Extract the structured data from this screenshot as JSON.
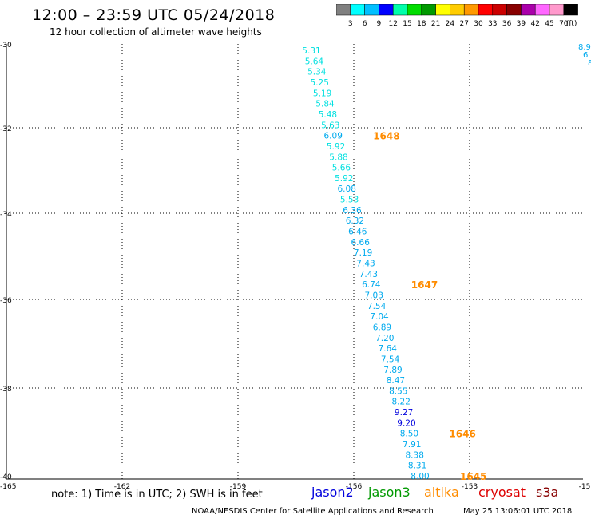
{
  "header": {
    "title": "12:00 – 23:59 UTC 05/24/2018",
    "subtitle": "12 hour collection of altimeter wave heights"
  },
  "color_scale": {
    "colors": [
      "#808080",
      "#00ffff",
      "#00bfff",
      "#0000ff",
      "#00ffaa",
      "#00dd00",
      "#009900",
      "#ffff00",
      "#ffcc00",
      "#ff9900",
      "#ff0000",
      "#cc0000",
      "#880000",
      "#aa00aa",
      "#ff66ff",
      "#ff99cc",
      "#000000"
    ],
    "labels": [
      "3",
      "6",
      "9",
      "12",
      "15",
      "18",
      "21",
      "24",
      "27",
      "30",
      "33",
      "36",
      "39",
      "42",
      "45",
      "70"
    ],
    "unit": "(ft)"
  },
  "map": {
    "x_ticks": [
      "-165",
      "-162",
      "-159",
      "-156",
      "-153",
      "-15"
    ],
    "y_ticks": [
      "-30",
      "-32",
      "-34",
      "-36",
      "-38",
      "-40"
    ],
    "track_colors": {
      "cyan": "#00e0e0",
      "sky": "#00aaee",
      "blue": "#0000dd",
      "orange": "#ff8c00"
    },
    "track_values": [
      {
        "v": "5.31",
        "c": "cyan"
      },
      {
        "v": "5.64",
        "c": "cyan"
      },
      {
        "v": "5.34",
        "c": "cyan"
      },
      {
        "v": "5.25",
        "c": "cyan"
      },
      {
        "v": "5.19",
        "c": "cyan"
      },
      {
        "v": "5.84",
        "c": "cyan"
      },
      {
        "v": "5.48",
        "c": "cyan"
      },
      {
        "v": "5.63",
        "c": "cyan"
      },
      {
        "v": "6.09",
        "c": "sky"
      },
      {
        "v": "5.92",
        "c": "cyan"
      },
      {
        "v": "5.88",
        "c": "cyan"
      },
      {
        "v": "5.66",
        "c": "cyan"
      },
      {
        "v": "5.92",
        "c": "cyan"
      },
      {
        "v": "6.08",
        "c": "sky"
      },
      {
        "v": "5.53",
        "c": "cyan"
      },
      {
        "v": "6.36",
        "c": "sky"
      },
      {
        "v": "6.32",
        "c": "sky"
      },
      {
        "v": "6.46",
        "c": "sky"
      },
      {
        "v": "6.66",
        "c": "sky"
      },
      {
        "v": "7.19",
        "c": "sky"
      },
      {
        "v": "7.43",
        "c": "sky"
      },
      {
        "v": "7.43",
        "c": "sky"
      },
      {
        "v": "6.74",
        "c": "sky"
      },
      {
        "v": "7.03",
        "c": "sky"
      },
      {
        "v": "7.54",
        "c": "sky"
      },
      {
        "v": "7.04",
        "c": "sky"
      },
      {
        "v": "6.89",
        "c": "sky"
      },
      {
        "v": "7.20",
        "c": "sky"
      },
      {
        "v": "7.64",
        "c": "sky"
      },
      {
        "v": "7.54",
        "c": "sky"
      },
      {
        "v": "7.89",
        "c": "sky"
      },
      {
        "v": "8.47",
        "c": "sky"
      },
      {
        "v": "8.55",
        "c": "sky"
      },
      {
        "v": "8.22",
        "c": "sky"
      },
      {
        "v": "9.27",
        "c": "blue"
      },
      {
        "v": "9.20",
        "c": "blue"
      },
      {
        "v": "8.50",
        "c": "sky"
      },
      {
        "v": "7.91",
        "c": "sky"
      },
      {
        "v": "8.38",
        "c": "sky"
      },
      {
        "v": "8.31",
        "c": "sky"
      },
      {
        "v": "8.00",
        "c": "sky"
      }
    ],
    "time_labels": [
      {
        "t": "1648",
        "at": 8
      },
      {
        "t": "1647",
        "at": 22
      },
      {
        "t": "1646",
        "at": 36
      },
      {
        "t": "1645",
        "at": 40
      }
    ],
    "edge_values": [
      "8.9",
      "6",
      "8"
    ]
  },
  "footer": {
    "note": "note: 1) Time is in UTC; 2) SWH is in feet",
    "satellites": [
      {
        "name": "jason2",
        "color": "#0000dd"
      },
      {
        "name": "jason3",
        "color": "#009900"
      },
      {
        "name": "altika",
        "color": "#ff8c00"
      },
      {
        "name": "cryosat",
        "color": "#dd0000"
      },
      {
        "name": "s3a",
        "color": "#880000"
      }
    ],
    "credit": "NOAA/NESDIS Center for Satellite Applications and Research",
    "timestamp": "May 25 13:06:01 UTC 2018"
  }
}
